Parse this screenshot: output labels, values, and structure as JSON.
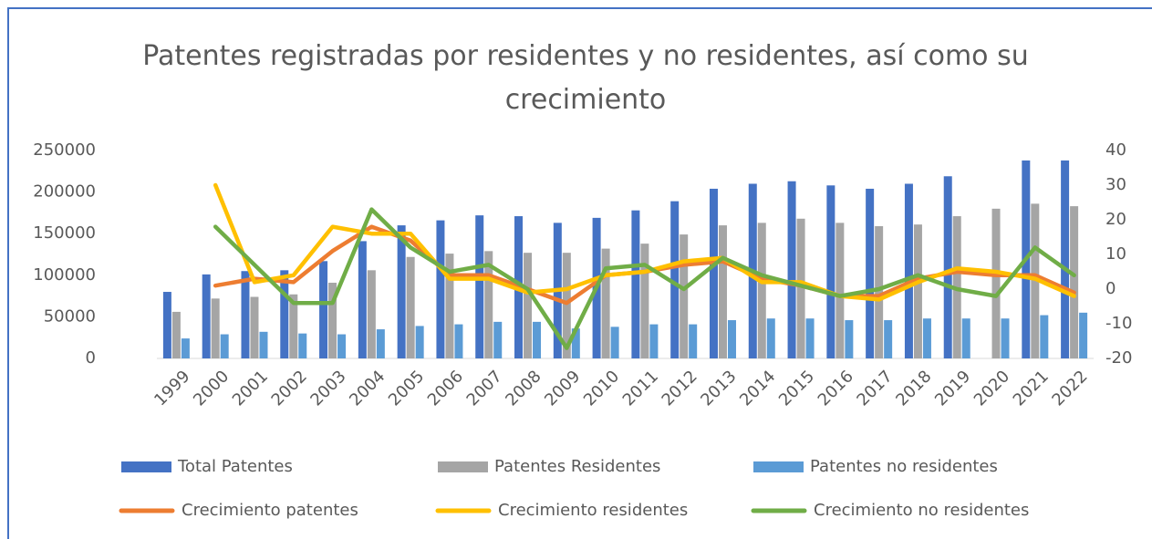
{
  "chart_data": {
    "type": "combo",
    "title": "Patentes registradas por residentes y no residentes, así como su crecimiento",
    "categories": [
      "1999",
      "2000",
      "2001",
      "2002",
      "2003",
      "2004",
      "2005",
      "2006",
      "2007",
      "2008",
      "2009",
      "2010",
      "2011",
      "2012",
      "2013",
      "2014",
      "2015",
      "2016",
      "2017",
      "2018",
      "2019",
      "2020",
      "2021",
      "2022"
    ],
    "series": [
      {
        "name": "Total Patentes",
        "type": "bar",
        "color": "#4472c4",
        "values": [
          80000,
          101000,
          105000,
          106000,
          117000,
          141000,
          160000,
          166000,
          172000,
          171000,
          163000,
          169000,
          178000,
          189000,
          204000,
          210000,
          213000,
          208000,
          204000,
          210000,
          219000,
          null,
          238000,
          238000
        ]
      },
      {
        "name": "Patentes Residentes",
        "type": "bar",
        "color": "#a5a5a5",
        "values": [
          56000,
          72000,
          74000,
          77000,
          91000,
          106000,
          122000,
          126000,
          129000,
          127000,
          127000,
          132000,
          138000,
          149000,
          160000,
          163000,
          168000,
          163000,
          159000,
          161000,
          171000,
          180000,
          186000,
          183000
        ]
      },
      {
        "name": "Patentes no residentes",
        "type": "bar",
        "color": "#5b9bd5",
        "values": [
          24000,
          29000,
          32000,
          30000,
          29000,
          35000,
          39000,
          41000,
          44000,
          44000,
          36000,
          38000,
          41000,
          41000,
          46000,
          48000,
          48000,
          46000,
          46000,
          48000,
          48000,
          48000,
          52000,
          55000
        ]
      },
      {
        "name": "Crecimiento patentes",
        "type": "line",
        "axis": "y2",
        "color": "#ed7d31",
        "values": [
          null,
          1,
          3,
          2,
          11,
          18,
          14,
          4,
          4,
          0,
          -4,
          4,
          5,
          7,
          8,
          3,
          1,
          -2,
          -2,
          3,
          5,
          4,
          4,
          -1
        ]
      },
      {
        "name": "Crecimiento residentes",
        "type": "line",
        "axis": "y2",
        "color": "#ffc000",
        "values": [
          null,
          30,
          2,
          4,
          18,
          16,
          16,
          3,
          3,
          -1,
          0,
          4,
          5,
          8,
          9,
          2,
          2,
          -2,
          -3,
          2,
          6,
          5,
          3,
          -2
        ]
      },
      {
        "name": "Crecimiento no residentes",
        "type": "line",
        "axis": "y2",
        "color": "#70ad47",
        "values": [
          null,
          18,
          7,
          -4,
          -4,
          23,
          12,
          5,
          7,
          0,
          -17,
          6,
          7,
          0,
          9,
          4,
          1,
          -2,
          0,
          4,
          0,
          -2,
          12,
          4
        ]
      }
    ],
    "ylim": [
      0,
      250000
    ],
    "yticks": [
      0,
      50000,
      100000,
      150000,
      200000,
      250000
    ],
    "y2lim": [
      -20,
      40
    ],
    "y2ticks": [
      -20,
      -10,
      0,
      10,
      20,
      30,
      40
    ],
    "legend": "bottom"
  }
}
